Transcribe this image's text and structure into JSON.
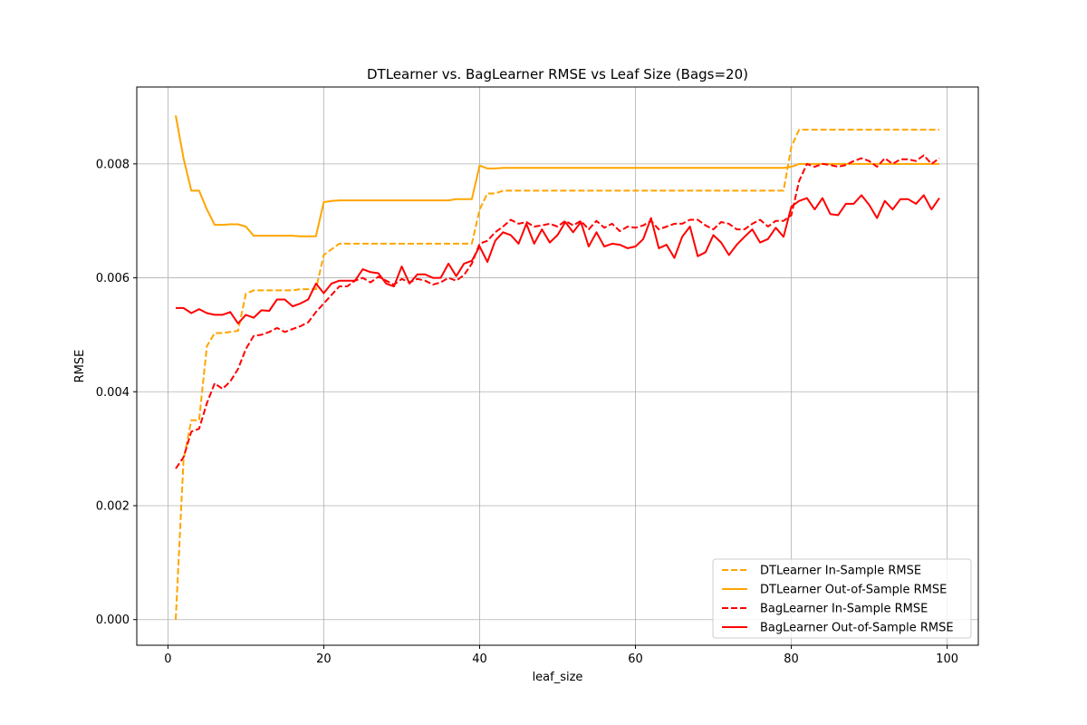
{
  "chart_data": {
    "type": "line",
    "title": "DTLearner vs. BagLearner RMSE vs Leaf Size (Bags=20)",
    "xlabel": "leaf_size",
    "ylabel": "RMSE",
    "xlim": [
      -4,
      104
    ],
    "ylim": [
      -0.00045,
      0.00935
    ],
    "xticks": [
      0,
      20,
      40,
      60,
      80,
      100
    ],
    "xtick_labels": [
      "0",
      "20",
      "40",
      "60",
      "80",
      "100"
    ],
    "yticks": [
      0.0,
      0.002,
      0.004,
      0.006,
      0.008
    ],
    "ytick_labels": [
      "0.000",
      "0.002",
      "0.004",
      "0.006",
      "0.008"
    ],
    "grid": true,
    "legend_position": "lower-right",
    "colors": {
      "orange": "#ffa500",
      "red": "#ff0000"
    },
    "x_start": 1,
    "series": [
      {
        "name": "DTLearner In-Sample RMSE",
        "color": "#ffa500",
        "dash": "dashed",
        "values": [
          0.0,
          0.0028,
          0.0035,
          0.0035,
          0.0048,
          0.00503,
          0.00503,
          0.00505,
          0.00507,
          0.00572,
          0.00578,
          0.00578,
          0.00578,
          0.00578,
          0.00578,
          0.00578,
          0.0058,
          0.0058,
          0.0058,
          0.0064,
          0.0065,
          0.0066,
          0.0066,
          0.0066,
          0.0066,
          0.0066,
          0.0066,
          0.0066,
          0.0066,
          0.0066,
          0.0066,
          0.0066,
          0.0066,
          0.0066,
          0.0066,
          0.0066,
          0.0066,
          0.0066,
          0.0066,
          0.0072,
          0.00748,
          0.00748,
          0.00753,
          0.00753,
          0.00753,
          0.00753,
          0.00753,
          0.00753,
          0.00753,
          0.00753,
          0.00753,
          0.00753,
          0.00753,
          0.00753,
          0.00753,
          0.00753,
          0.00753,
          0.00753,
          0.00753,
          0.00753,
          0.00753,
          0.00753,
          0.00753,
          0.00753,
          0.00753,
          0.00753,
          0.00753,
          0.00753,
          0.00753,
          0.00753,
          0.00753,
          0.00753,
          0.00753,
          0.00753,
          0.00753,
          0.00753,
          0.00753,
          0.00753,
          0.00753,
          0.0083,
          0.0086,
          0.0086,
          0.0086,
          0.0086,
          0.0086,
          0.0086,
          0.0086,
          0.0086,
          0.0086,
          0.0086,
          0.0086,
          0.0086,
          0.0086,
          0.0086,
          0.0086,
          0.0086,
          0.0086,
          0.0086,
          0.0086
        ]
      },
      {
        "name": "DTLearner Out-of-Sample RMSE",
        "color": "#ffa500",
        "dash": "solid",
        "values": [
          0.00885,
          0.0081,
          0.00753,
          0.00753,
          0.0072,
          0.00693,
          0.00693,
          0.00694,
          0.00694,
          0.0069,
          0.00674,
          0.00674,
          0.00674,
          0.00674,
          0.00674,
          0.00674,
          0.00673,
          0.00673,
          0.00673,
          0.00733,
          0.00735,
          0.00736,
          0.00736,
          0.00736,
          0.00736,
          0.00736,
          0.00736,
          0.00736,
          0.00736,
          0.00736,
          0.00736,
          0.00736,
          0.00736,
          0.00736,
          0.00736,
          0.00736,
          0.00738,
          0.00738,
          0.00738,
          0.00797,
          0.00792,
          0.00792,
          0.00793,
          0.00793,
          0.00793,
          0.00793,
          0.00793,
          0.00793,
          0.00793,
          0.00793,
          0.00793,
          0.00793,
          0.00793,
          0.00793,
          0.00793,
          0.00793,
          0.00793,
          0.00793,
          0.00793,
          0.00793,
          0.00793,
          0.00793,
          0.00793,
          0.00793,
          0.00793,
          0.00793,
          0.00793,
          0.00793,
          0.00793,
          0.00793,
          0.00793,
          0.00793,
          0.00793,
          0.00793,
          0.00793,
          0.00793,
          0.00793,
          0.00793,
          0.00793,
          0.00795,
          0.008,
          0.008,
          0.008,
          0.008,
          0.008,
          0.008,
          0.008,
          0.008,
          0.008,
          0.008,
          0.008,
          0.008,
          0.008,
          0.008,
          0.008,
          0.008,
          0.008,
          0.008,
          0.008
        ]
      },
      {
        "name": "BagLearner In-Sample RMSE",
        "color": "#ff0000",
        "dash": "dashed",
        "values": [
          0.00265,
          0.00285,
          0.0033,
          0.00335,
          0.0038,
          0.00415,
          0.00405,
          0.00418,
          0.0044,
          0.00475,
          0.00498,
          0.005,
          0.00505,
          0.00512,
          0.00505,
          0.0051,
          0.00515,
          0.00522,
          0.0054,
          0.00555,
          0.0057,
          0.00585,
          0.00585,
          0.00595,
          0.006,
          0.00592,
          0.00602,
          0.00595,
          0.00588,
          0.00598,
          0.00592,
          0.00598,
          0.00595,
          0.00588,
          0.00592,
          0.006,
          0.00595,
          0.00605,
          0.00625,
          0.0066,
          0.00665,
          0.0068,
          0.0069,
          0.00702,
          0.00695,
          0.00698,
          0.0069,
          0.00692,
          0.00695,
          0.0069,
          0.007,
          0.00692,
          0.007,
          0.00685,
          0.007,
          0.00688,
          0.00695,
          0.00682,
          0.0069,
          0.00688,
          0.00692,
          0.007,
          0.00685,
          0.0069,
          0.00695,
          0.00695,
          0.00702,
          0.00702,
          0.00692,
          0.00685,
          0.00698,
          0.00695,
          0.00685,
          0.00685,
          0.00695,
          0.00702,
          0.0069,
          0.007,
          0.007,
          0.0071,
          0.0077,
          0.008,
          0.00795,
          0.008,
          0.00798,
          0.00795,
          0.00798,
          0.00805,
          0.0081,
          0.00805,
          0.00795,
          0.0081,
          0.008,
          0.00808,
          0.00808,
          0.00805,
          0.00815,
          0.008,
          0.0081
        ]
      },
      {
        "name": "BagLearner Out-of-Sample RMSE",
        "color": "#ff0000",
        "dash": "solid",
        "values": [
          0.00547,
          0.00547,
          0.00538,
          0.00545,
          0.00538,
          0.00535,
          0.00535,
          0.0054,
          0.0052,
          0.00535,
          0.0053,
          0.00543,
          0.00542,
          0.00562,
          0.00562,
          0.0055,
          0.00555,
          0.00562,
          0.0059,
          0.00573,
          0.0059,
          0.00595,
          0.00595,
          0.00595,
          0.00615,
          0.0061,
          0.00608,
          0.0059,
          0.00585,
          0.0062,
          0.0059,
          0.00606,
          0.00606,
          0.006,
          0.006,
          0.00625,
          0.00603,
          0.00625,
          0.0063,
          0.00655,
          0.00628,
          0.00665,
          0.0068,
          0.00675,
          0.0066,
          0.00695,
          0.0066,
          0.00685,
          0.00662,
          0.00675,
          0.00698,
          0.0068,
          0.00698,
          0.00655,
          0.0068,
          0.00655,
          0.0066,
          0.00658,
          0.00652,
          0.00655,
          0.00668,
          0.00705,
          0.00652,
          0.00658,
          0.00635,
          0.00672,
          0.0069,
          0.00638,
          0.00645,
          0.00675,
          0.00662,
          0.0064,
          0.00658,
          0.00672,
          0.00685,
          0.00662,
          0.00668,
          0.00688,
          0.00672,
          0.00725,
          0.00735,
          0.0074,
          0.0072,
          0.0074,
          0.00712,
          0.0071,
          0.0073,
          0.0073,
          0.00745,
          0.00728,
          0.00705,
          0.00735,
          0.0072,
          0.00738,
          0.00738,
          0.0073,
          0.00745,
          0.0072,
          0.0074
        ]
      }
    ]
  }
}
